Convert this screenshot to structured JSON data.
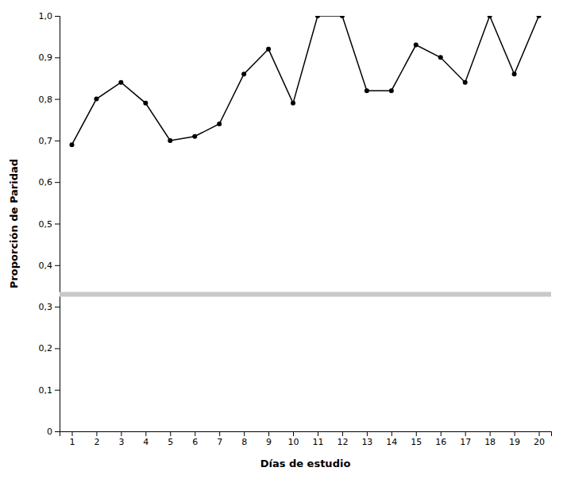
{
  "chart_data": {
    "type": "line",
    "x": [
      1,
      2,
      3,
      4,
      5,
      6,
      7,
      8,
      9,
      10,
      11,
      12,
      13,
      14,
      15,
      16,
      17,
      18,
      19,
      20
    ],
    "values": [
      0.69,
      0.8,
      0.84,
      0.79,
      0.7,
      0.71,
      0.74,
      0.86,
      0.92,
      0.79,
      1.0,
      1.0,
      0.82,
      0.82,
      0.93,
      0.9,
      0.84,
      1.0,
      0.86,
      1.0
    ],
    "xlabel": "Días de estudio",
    "ylabel": "Proporción de Paridad",
    "xlim": [
      0.5,
      20.5
    ],
    "ylim": [
      0,
      1.0
    ],
    "xticks": [
      1,
      2,
      3,
      4,
      5,
      6,
      7,
      8,
      9,
      10,
      11,
      12,
      13,
      14,
      15,
      16,
      17,
      18,
      19,
      20
    ],
    "yticks": [
      0,
      {
        "value": 0.1,
        "label": "0,1"
      },
      {
        "value": 0.2,
        "label": "0,2"
      },
      {
        "value": 0.3,
        "label": "0,3"
      },
      {
        "value": 0.4,
        "label": "0,4"
      },
      {
        "value": 0.5,
        "label": "0,5"
      },
      {
        "value": 0.6,
        "label": "0,6"
      },
      {
        "value": 0.7,
        "label": "0,7"
      },
      {
        "value": 0.8,
        "label": "0,8"
      },
      {
        "value": 0.9,
        "label": "0,9"
      },
      {
        "value": 1.0,
        "label": "1,0"
      }
    ],
    "color": "#000000",
    "marker": "circle",
    "grid": false,
    "reference_line": {
      "value": 0.33,
      "color": "#c8c8c8"
    }
  }
}
